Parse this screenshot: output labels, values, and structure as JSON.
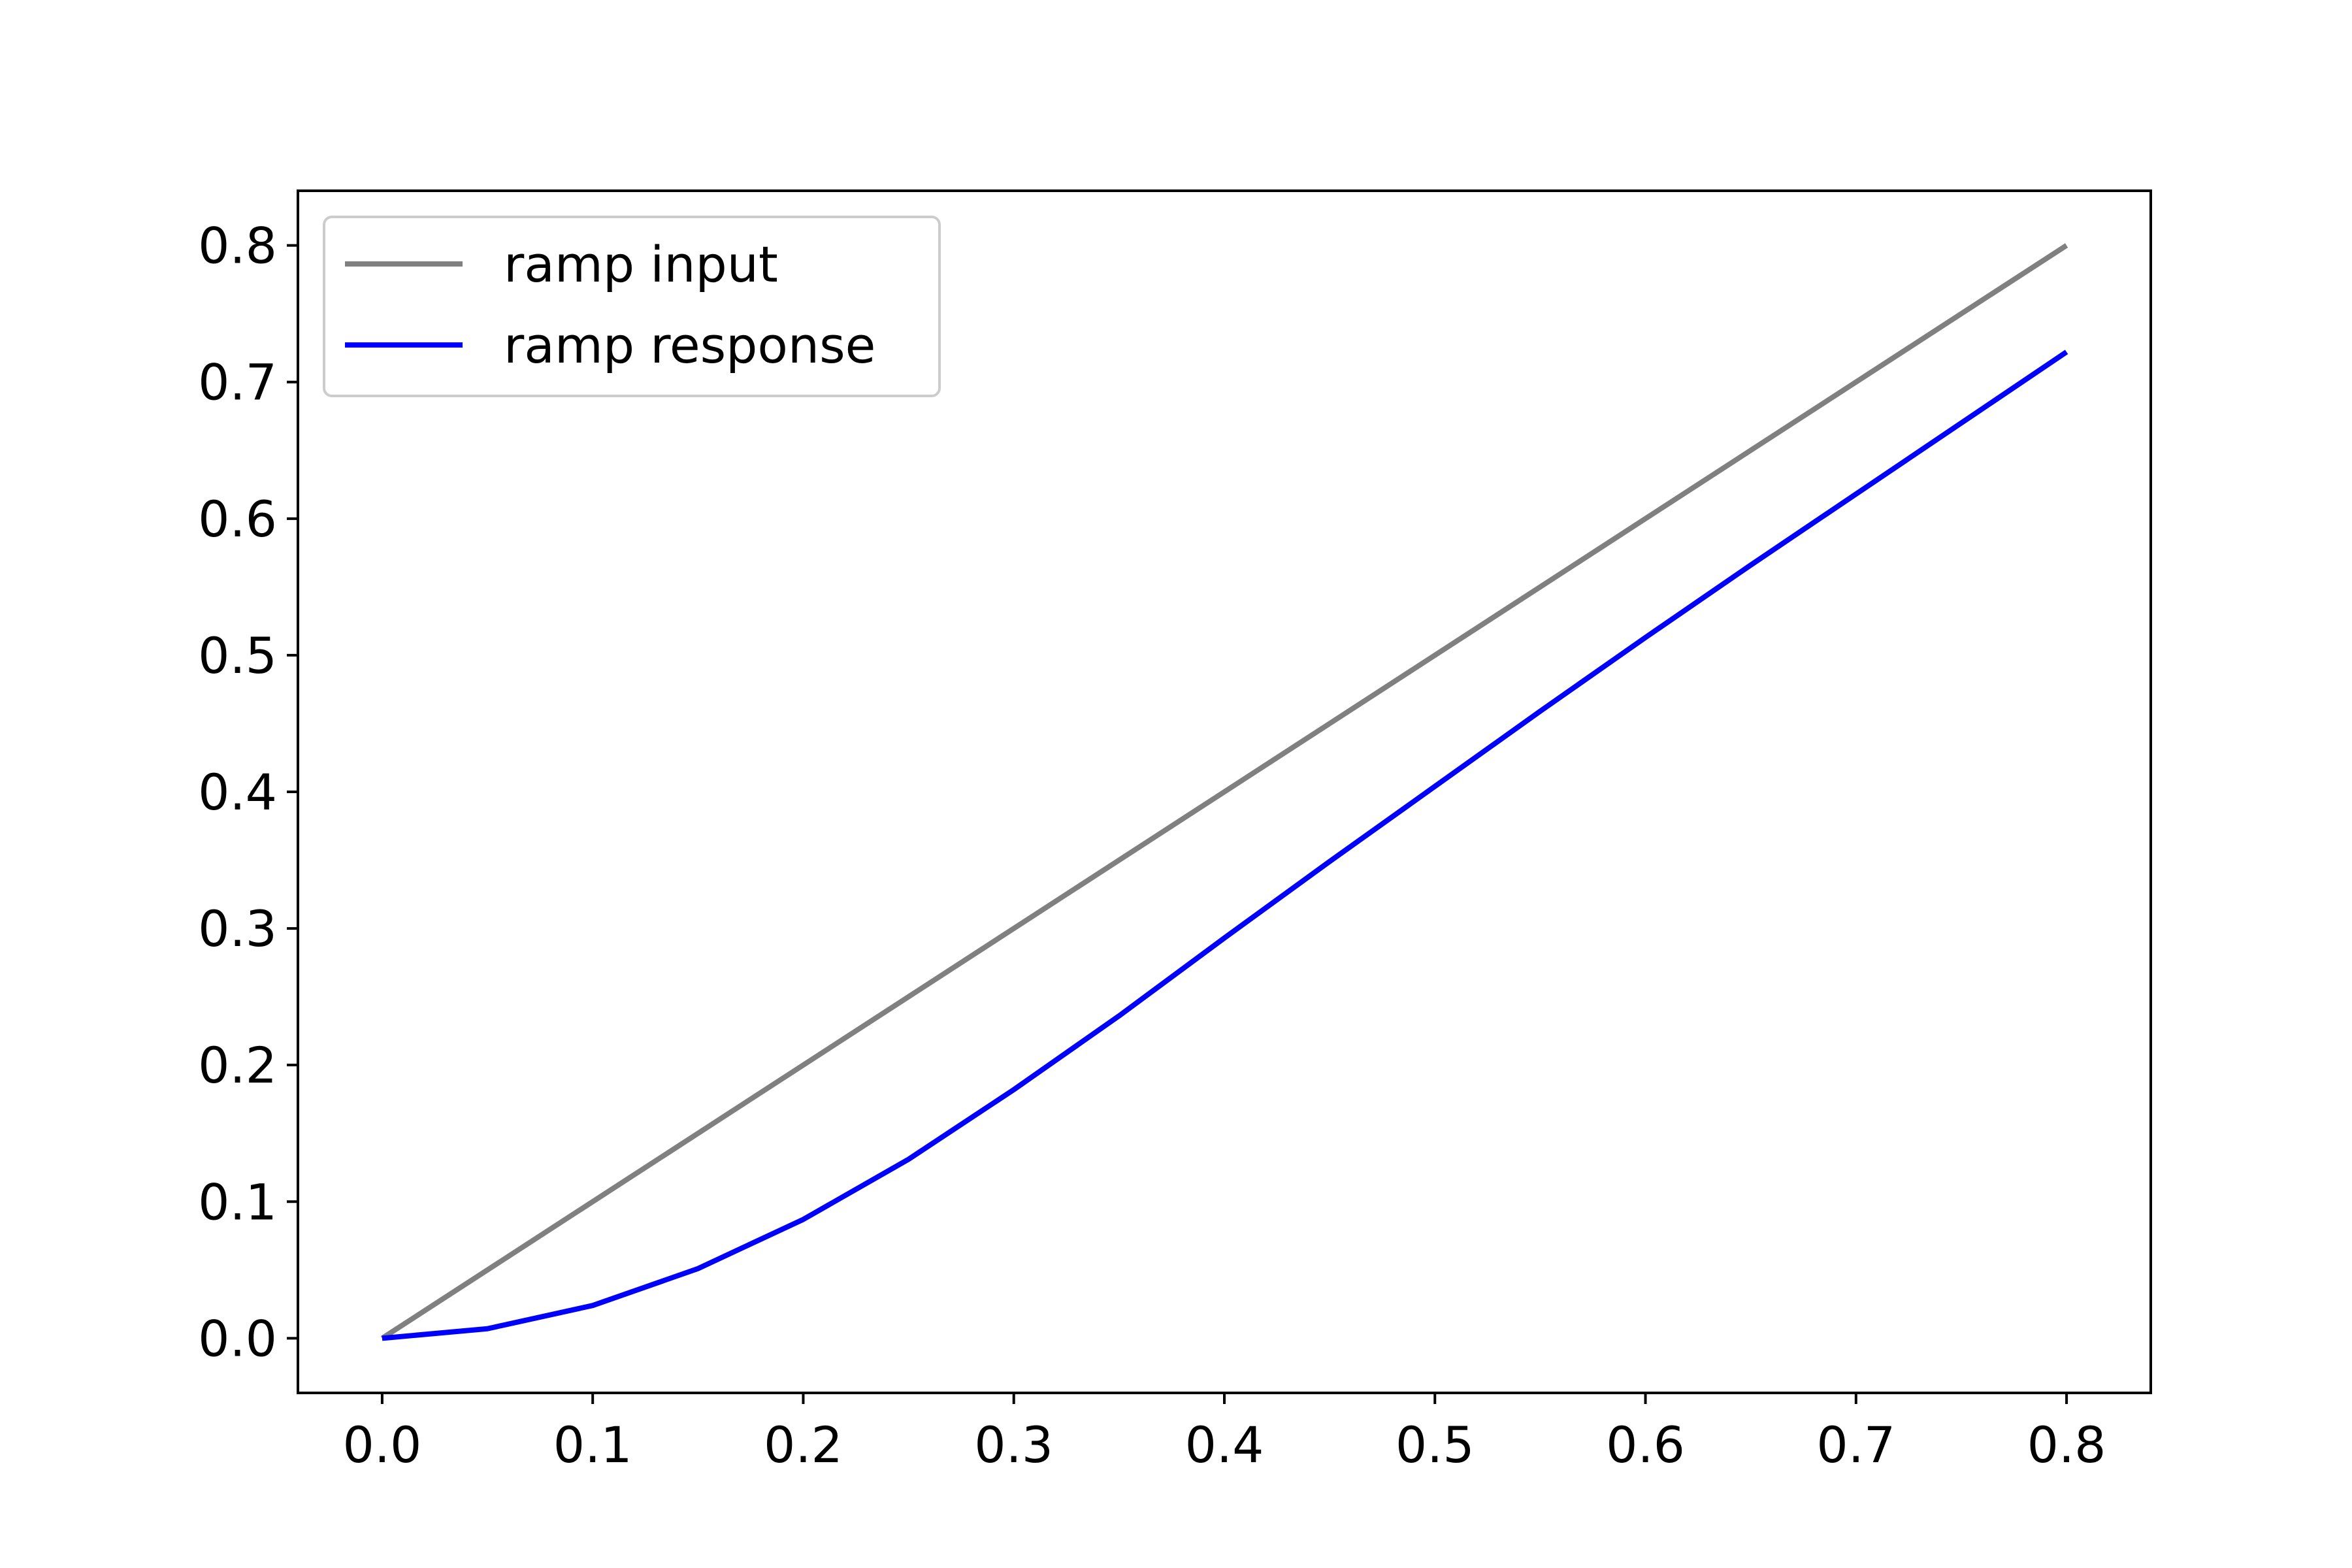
{
  "chart_data": {
    "type": "line",
    "title": "",
    "xlabel": "",
    "ylabel": "",
    "xlim": [
      -0.04,
      0.84
    ],
    "ylim": [
      -0.04,
      0.84
    ],
    "grid": false,
    "legend_position": "top-left",
    "x_ticks": [
      "0.0",
      "0.1",
      "0.2",
      "0.3",
      "0.4",
      "0.5",
      "0.6",
      "0.7",
      "0.8"
    ],
    "y_ticks": [
      "0.0",
      "0.1",
      "0.2",
      "0.3",
      "0.4",
      "0.5",
      "0.6",
      "0.7",
      "0.8"
    ],
    "series": [
      {
        "name": "ramp input",
        "color": "#808080",
        "x": [
          0.0,
          0.8
        ],
        "y": [
          0.0,
          0.8
        ]
      },
      {
        "name": "ramp response",
        "color": "#0000ff",
        "x": [
          0.0,
          0.05,
          0.1,
          0.15,
          0.2,
          0.25,
          0.3,
          0.35,
          0.4,
          0.45,
          0.5,
          0.55,
          0.6,
          0.65,
          0.7,
          0.75,
          0.8
        ],
        "y": [
          0.0,
          0.007,
          0.024,
          0.051,
          0.087,
          0.131,
          0.182,
          0.236,
          0.293,
          0.349,
          0.404,
          0.459,
          0.513,
          0.566,
          0.618,
          0.67,
          0.722
        ]
      }
    ]
  }
}
